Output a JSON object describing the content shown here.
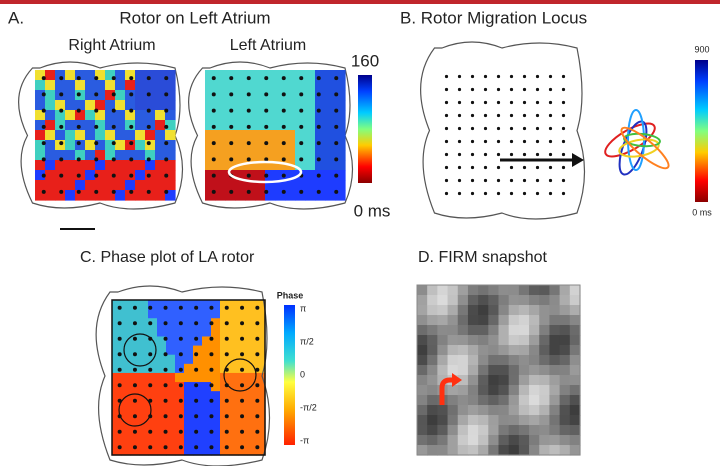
{
  "panels": [
    {
      "label": "A.",
      "title": "Rotor on Left Atrium",
      "subtitles": [
        "Right Atrium",
        "Left Atrium"
      ],
      "colorbar": {
        "top": "160",
        "bottom": "0 ms"
      }
    },
    {
      "title": "B. Rotor Migration Locus",
      "colorbar": {
        "top": "900",
        "bottom": "0 ms"
      }
    },
    {
      "title": "C.  Phase plot of LA rotor",
      "colorbar": {
        "title": "Phase",
        "labels": [
          "π",
          "π/2",
          "0",
          "-π/2",
          "-π"
        ]
      }
    },
    {
      "title": "D.  FIRM snapshot"
    }
  ]
}
